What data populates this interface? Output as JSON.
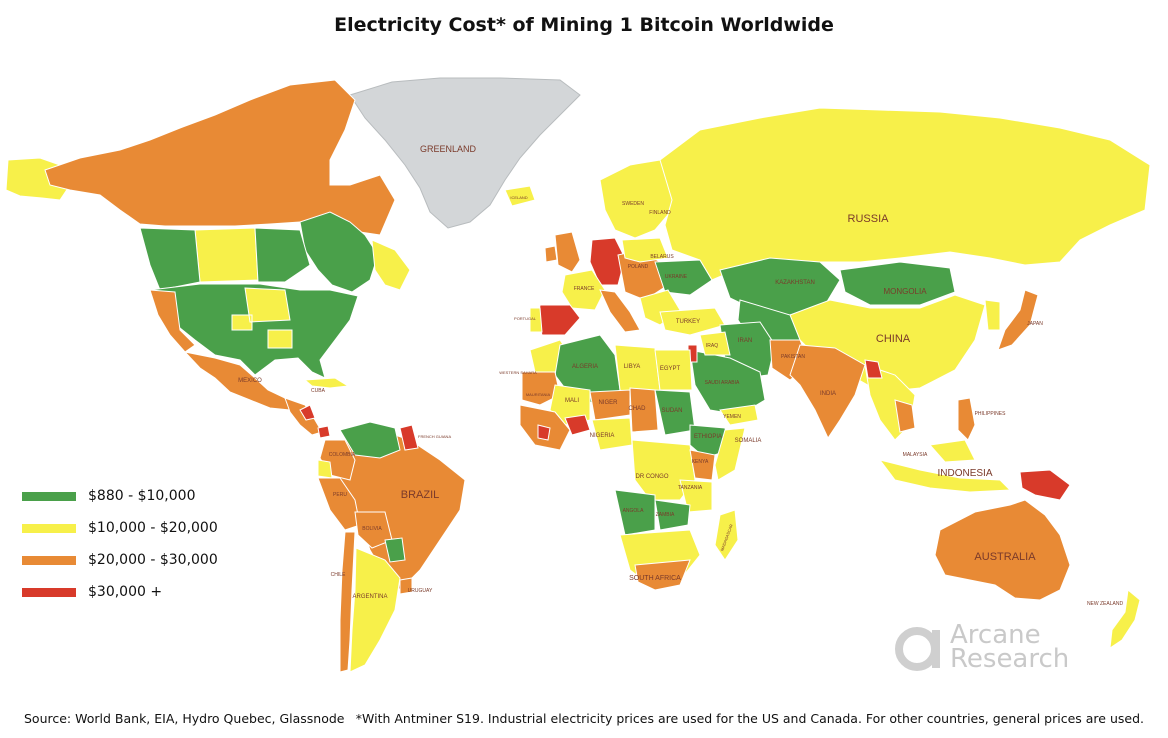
{
  "title": "Electricity Cost* of Mining 1 Bitcoin Worldwide",
  "legend": [
    {
      "label": "$880 - $10,000",
      "color": "#4aa04a"
    },
    {
      "label": "$10,000 - $20,000",
      "color": "#f7f04a"
    },
    {
      "label": "$20,000 - $30,000",
      "color": "#e88a35"
    },
    {
      "label": "$30,000 +",
      "color": "#d83a2a"
    }
  ],
  "colors": {
    "green": "#4aa04a",
    "yellow": "#f7f04a",
    "orange": "#e88a35",
    "red": "#d83a2a",
    "no_data": "#d3d6d8"
  },
  "map_labels": {
    "greenland": "GREENLAND",
    "russia": "RUSSIA",
    "china": "CHINA",
    "kazakhstan": "KAZAKHSTAN",
    "mongolia": "MONGOLIA",
    "brazil": "BRAZIL",
    "australia": "AUSTRALIA",
    "indonesia": "INDONESIA",
    "india": "INDIA",
    "iran": "IRAN",
    "algeria": "ALGERIA",
    "libya": "LIBYA",
    "egypt": "EGYPT",
    "niger": "NIGER",
    "mali": "MALI",
    "chad": "CHAD",
    "sudan": "SUDAN",
    "ethiopia": "ETHIOPIA",
    "somalia": "SOMALIA",
    "nigeria": "NIGERIA",
    "kenya": "KENYA",
    "tanzania": "TANZANIA",
    "dr_congo": "DR CONGO",
    "angola": "ANGOLA",
    "zambia": "ZAMBIA",
    "madagascar": "MADAGASCAR",
    "south_africa": "SOUTH AFRICA",
    "saudi_arabia": "SAUDI ARABIA",
    "yemen": "YEMEN",
    "iraq": "IRAQ",
    "turkey": "TURKEY",
    "ukraine": "UKRAINE",
    "belarus": "BELARUS",
    "poland": "POLAND",
    "france": "FRANCE",
    "portugal": "PORTUGAL",
    "finland": "FINLAND",
    "sweden": "SWEDEN",
    "iceland": "ICELAND",
    "japan": "JAPAN",
    "philippines": "PHILIPPINES",
    "malaysia": "MALAYSIA",
    "new_zealand": "NEW ZEALAND",
    "pakistan": "PAKISTAN",
    "mexico": "MEXICO",
    "cuba": "CUBA",
    "colombia": "COLOMBIA",
    "peru": "PERU",
    "bolivia": "BOLIVIA",
    "chile": "CHILE",
    "argentina": "ARGENTINA",
    "uruguay": "URUGUAY",
    "western_sahara": "WESTERN SAHARA",
    "mauritania": "MAURITANIA",
    "french_guiana": "FRENCH GUIANA"
  },
  "footer": {
    "source": "Source: World Bank, EIA, Hydro Quebec, Glassnode",
    "note": "*With Antminer S19. Industrial electricity prices are used for the US and Canada. For other countries, general prices are used."
  },
  "brand": {
    "line1": "Arcane",
    "line2": "Research",
    "logo_icon": "arcane-logo-icon"
  }
}
